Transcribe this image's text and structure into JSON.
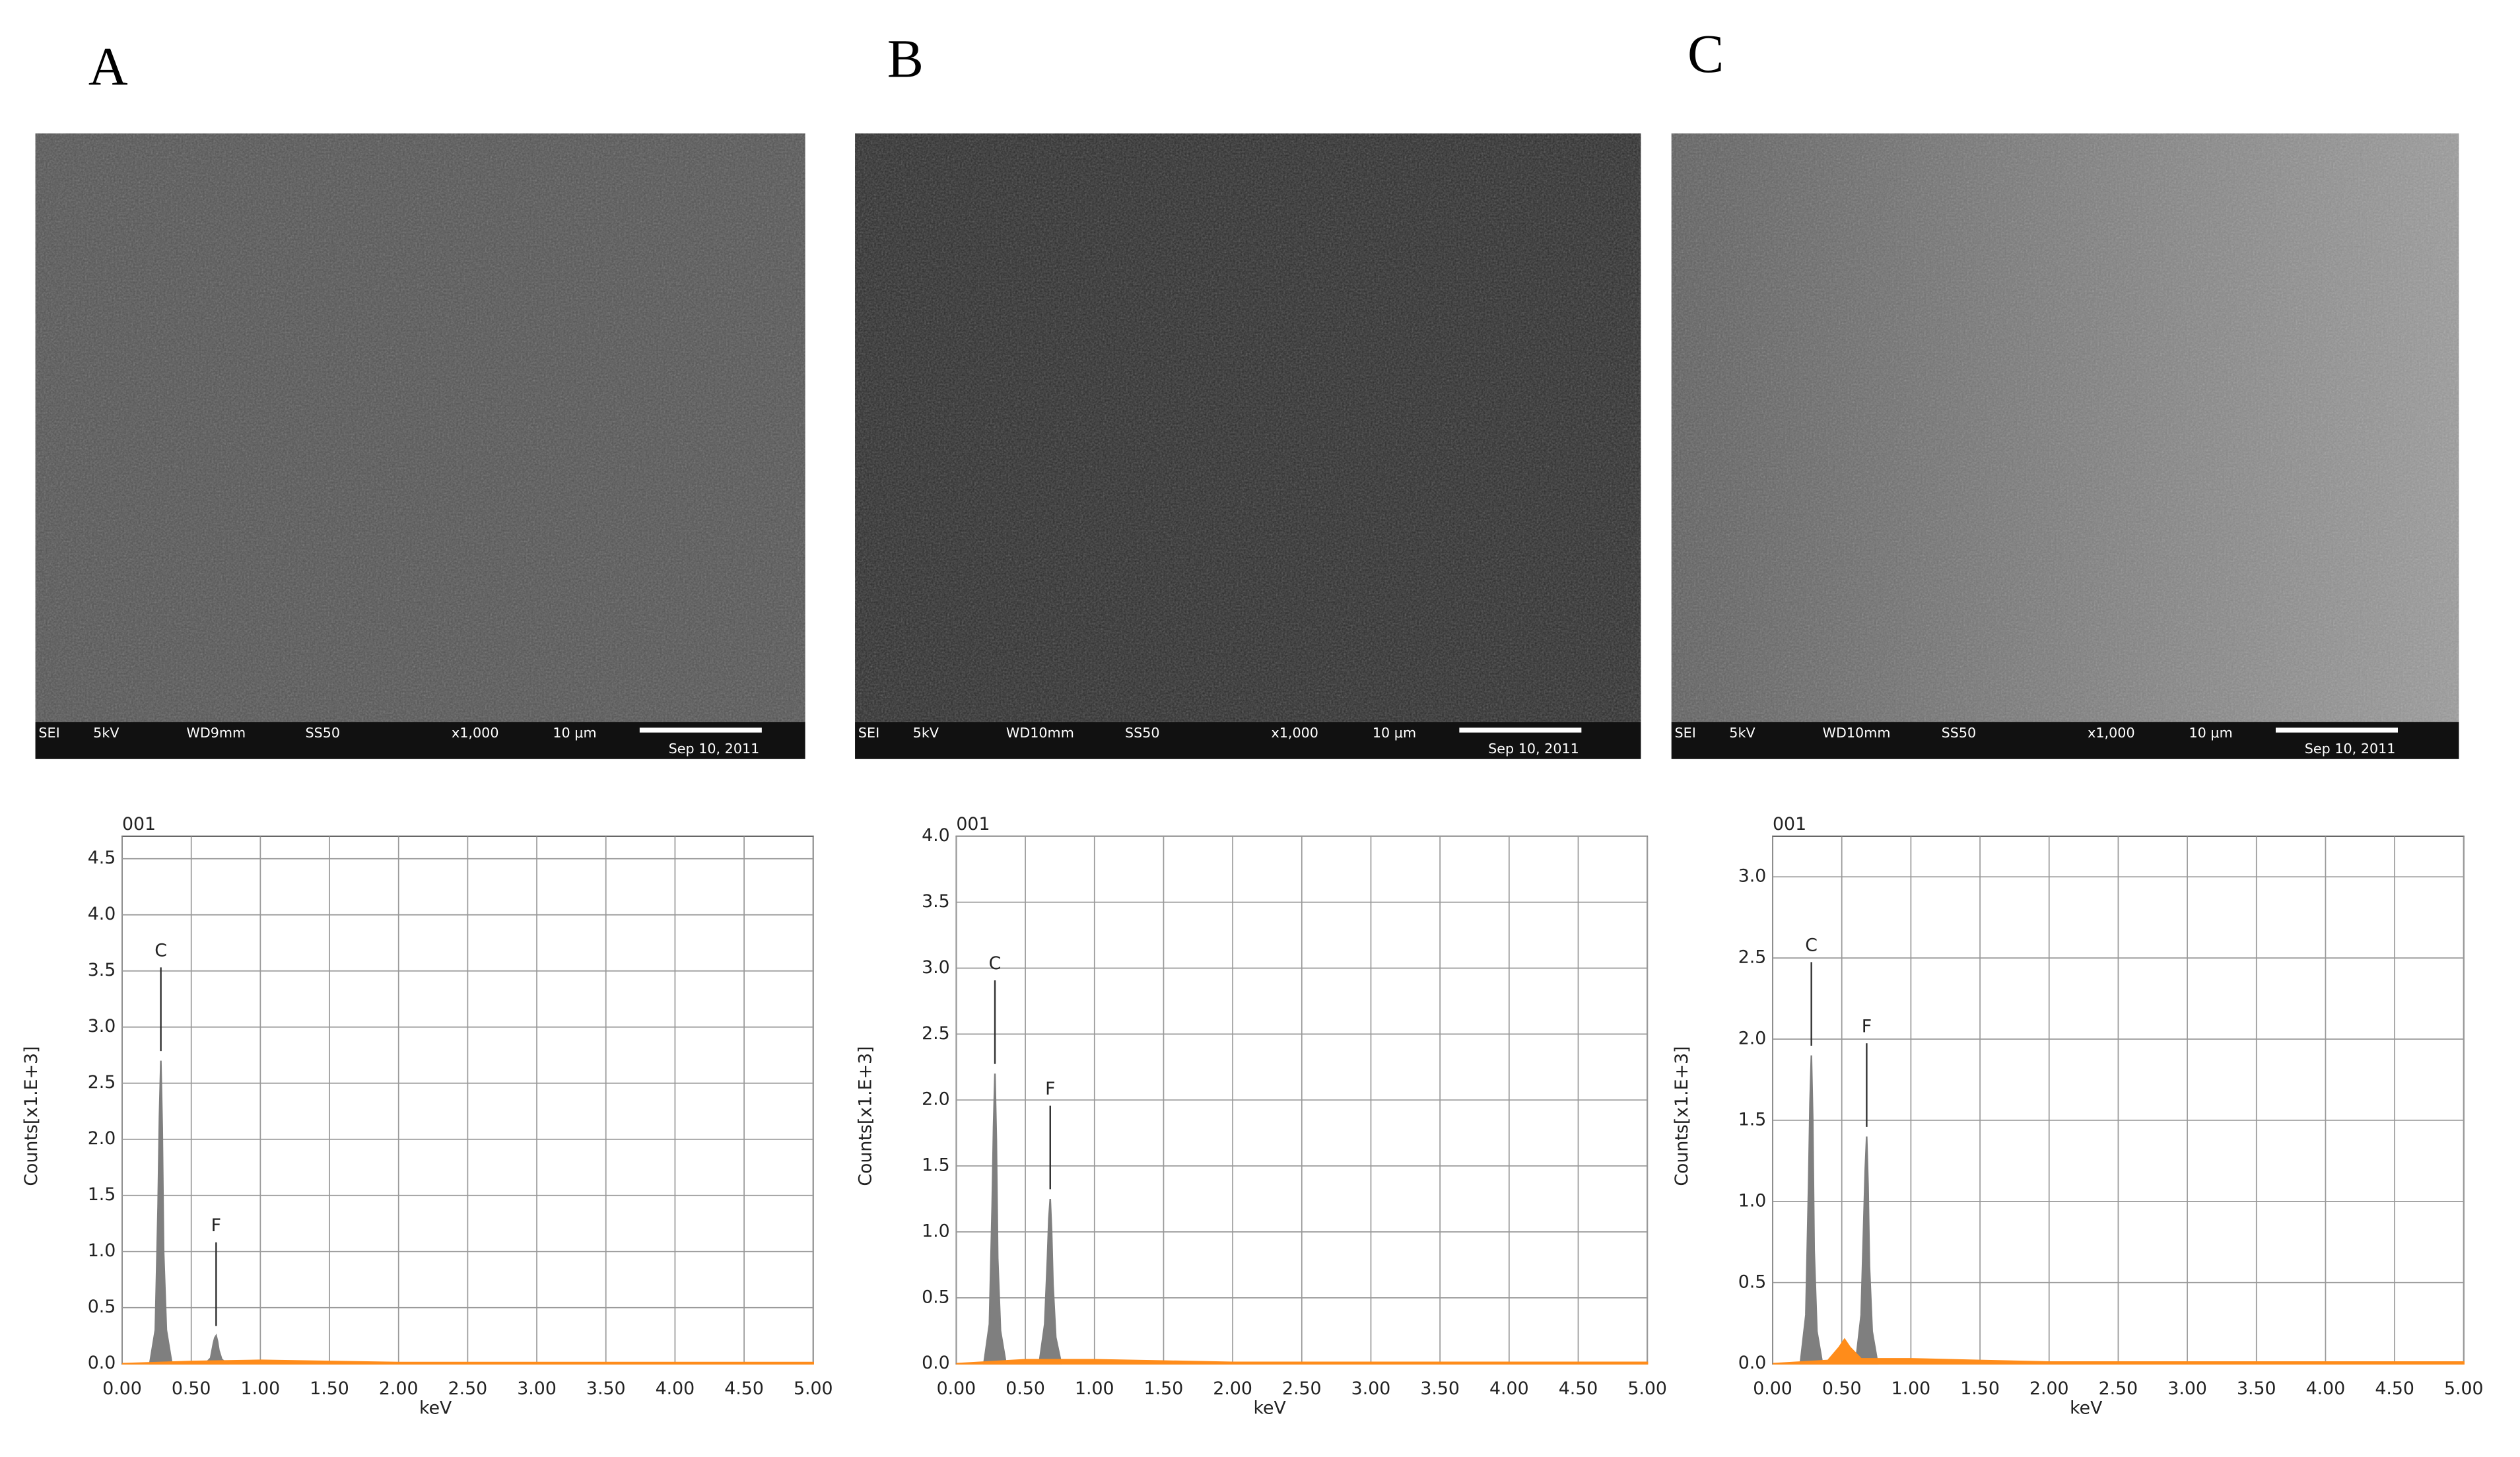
{
  "images": [
    {
      "label": "A",
      "info": [
        "SEI",
        "5kV",
        "WD9mm",
        "SS50",
        "x1,000",
        "10 μm",
        "Sep 10, 2011"
      ]
    },
    {
      "label": "B",
      "info": [
        "SEI",
        "5kV",
        "WD10mm",
        "SS50",
        "x1,000",
        "10 μm",
        "Sep 10, 2011"
      ]
    },
    {
      "label": "C",
      "info": [
        "SEI",
        "5kV",
        "WD10mm",
        "SS50",
        "x1,000",
        "10 μm",
        "Sep 10, 2011"
      ]
    }
  ],
  "chart_data": [
    {
      "type": "area",
      "title": "001",
      "xlabel": "keV",
      "ylabel": "Counts[x1.E+3]",
      "xlim": [
        0,
        5
      ],
      "ylim": [
        0,
        4.7
      ],
      "xticks": [
        {
          "value": 0,
          "label": "0.00"
        },
        {
          "value": 0.5,
          "label": "0.50"
        },
        {
          "value": 1,
          "label": "1.00"
        },
        {
          "value": 1.5,
          "label": "1.50"
        },
        {
          "value": 2,
          "label": "2.00"
        },
        {
          "value": 2.5,
          "label": "2.50"
        },
        {
          "value": 3,
          "label": "3.00"
        },
        {
          "value": 3.5,
          "label": "3.50"
        },
        {
          "value": 4,
          "label": "4.00"
        },
        {
          "value": 4.5,
          "label": "4.50"
        },
        {
          "value": 5,
          "label": "5.00"
        }
      ],
      "yticks": [
        {
          "value": 0,
          "label": "0.0"
        },
        {
          "value": 0.5,
          "label": "0.5"
        },
        {
          "value": 1,
          "label": "1.0"
        },
        {
          "value": 1.5,
          "label": "1.5"
        },
        {
          "value": 2,
          "label": "2.0"
        },
        {
          "value": 2.5,
          "label": "2.5"
        },
        {
          "value": 3,
          "label": "3.0"
        },
        {
          "value": 3.5,
          "label": "3.5"
        },
        {
          "value": 4,
          "label": "4.0"
        },
        {
          "value": 4.5,
          "label": "4.5"
        }
      ],
      "grid": true,
      "series": [
        {
          "color": "#7f7f7f",
          "x": [
            0.2,
            0.24,
            0.26,
            0.27,
            0.28,
            0.29,
            0.3,
            0.32,
            0.36,
            0.6,
            0.64,
            0.66,
            0.67,
            0.68,
            0.69,
            0.7,
            0.72,
            0.76
          ],
          "values": [
            0,
            0.3,
            1.4,
            2.2,
            2.7,
            2.1,
            1.0,
            0.3,
            0,
            0,
            0.05,
            0.18,
            0.23,
            0.25,
            0.2,
            0.12,
            0.04,
            0
          ]
        },
        {
          "color": "#ff8c1a",
          "x": [
            0,
            0.5,
            1,
            1.5,
            2,
            2.5,
            3,
            3.5,
            4,
            4.5,
            5
          ],
          "values": [
            0,
            0.02,
            0.03,
            0.02,
            0.01,
            0.01,
            0.01,
            0.01,
            0.01,
            0.01,
            0.01
          ]
        }
      ],
      "peak_labels": [
        {
          "text": "C",
          "x": 0.28
        },
        {
          "text": "F",
          "x": 0.68
        }
      ]
    },
    {
      "type": "area",
      "title": "001",
      "xlabel": "keV",
      "ylabel": "Counts[x1.E+3]",
      "xlim": [
        0,
        5
      ],
      "ylim": [
        0,
        4
      ],
      "xticks": [
        {
          "value": 0,
          "label": "0.00"
        },
        {
          "value": 0.5,
          "label": "0.50"
        },
        {
          "value": 1,
          "label": "1.00"
        },
        {
          "value": 1.5,
          "label": "1.50"
        },
        {
          "value": 2,
          "label": "2.00"
        },
        {
          "value": 2.5,
          "label": "2.50"
        },
        {
          "value": 3,
          "label": "3.00"
        },
        {
          "value": 3.5,
          "label": "3.50"
        },
        {
          "value": 4,
          "label": "4.00"
        },
        {
          "value": 4.5,
          "label": "4.50"
        },
        {
          "value": 5,
          "label": "5.00"
        }
      ],
      "yticks": [
        {
          "value": 0,
          "label": "0.0"
        },
        {
          "value": 0.5,
          "label": "0.5"
        },
        {
          "value": 1,
          "label": "1.0"
        },
        {
          "value": 1.5,
          "label": "1.5"
        },
        {
          "value": 2,
          "label": "2.0"
        },
        {
          "value": 2.5,
          "label": "2.5"
        },
        {
          "value": 3,
          "label": "3.0"
        },
        {
          "value": 3.5,
          "label": "3.5"
        },
        {
          "value": 4,
          "label": "4.0"
        }
      ],
      "grid": true,
      "series": [
        {
          "color": "#7f7f7f",
          "x": [
            0.2,
            0.24,
            0.26,
            0.27,
            0.28,
            0.29,
            0.3,
            0.32,
            0.36,
            0.6,
            0.64,
            0.66,
            0.67,
            0.68,
            0.69,
            0.7,
            0.72,
            0.76
          ],
          "values": [
            0,
            0.3,
            1.2,
            1.8,
            2.2,
            1.7,
            0.8,
            0.25,
            0,
            0,
            0.3,
            0.8,
            1.1,
            1.25,
            1.0,
            0.6,
            0.2,
            0
          ]
        },
        {
          "color": "#ff8c1a",
          "x": [
            0,
            0.5,
            1,
            1.5,
            2,
            2.5,
            3,
            3.5,
            4,
            4.5,
            5
          ],
          "values": [
            0,
            0.03,
            0.03,
            0.02,
            0.01,
            0.01,
            0.01,
            0.01,
            0.01,
            0.01,
            0.01
          ]
        }
      ],
      "peak_labels": [
        {
          "text": "C",
          "x": 0.28
        },
        {
          "text": "F",
          "x": 0.68
        }
      ]
    },
    {
      "type": "area",
      "title": "001",
      "xlabel": "keV",
      "ylabel": "Counts[x1.E+3]",
      "xlim": [
        0,
        5
      ],
      "ylim": [
        0,
        3.25
      ],
      "xticks": [
        {
          "value": 0,
          "label": "0.00"
        },
        {
          "value": 0.5,
          "label": "0.50"
        },
        {
          "value": 1,
          "label": "1.00"
        },
        {
          "value": 1.5,
          "label": "1.50"
        },
        {
          "value": 2,
          "label": "2.00"
        },
        {
          "value": 2.5,
          "label": "2.50"
        },
        {
          "value": 3,
          "label": "3.00"
        },
        {
          "value": 3.5,
          "label": "3.50"
        },
        {
          "value": 4,
          "label": "4.00"
        },
        {
          "value": 4.5,
          "label": "4.50"
        },
        {
          "value": 5,
          "label": "5.00"
        }
      ],
      "yticks": [
        {
          "value": 0,
          "label": "0.0"
        },
        {
          "value": 0.5,
          "label": "0.5"
        },
        {
          "value": 1,
          "label": "1.0"
        },
        {
          "value": 1.5,
          "label": "1.5"
        },
        {
          "value": 2,
          "label": "2.0"
        },
        {
          "value": 2.5,
          "label": "2.5"
        },
        {
          "value": 3,
          "label": "3.0"
        }
      ],
      "grid": true,
      "series": [
        {
          "color": "#7f7f7f",
          "x": [
            0.2,
            0.24,
            0.26,
            0.27,
            0.28,
            0.29,
            0.3,
            0.32,
            0.36,
            0.6,
            0.64,
            0.66,
            0.67,
            0.68,
            0.69,
            0.7,
            0.72,
            0.76
          ],
          "values": [
            0,
            0.3,
            1.1,
            1.6,
            1.9,
            1.5,
            0.7,
            0.2,
            0,
            0,
            0.3,
            0.9,
            1.2,
            1.4,
            1.1,
            0.6,
            0.2,
            0
          ]
        },
        {
          "color": "#ff8c1a",
          "x": [
            0,
            0.4,
            0.48,
            0.52,
            0.56,
            0.64,
            1,
            1.5,
            2,
            2.5,
            3,
            3.5,
            4,
            4.5,
            5
          ],
          "values": [
            0,
            0.02,
            0.1,
            0.15,
            0.1,
            0.03,
            0.03,
            0.02,
            0.01,
            0.01,
            0.01,
            0.01,
            0.01,
            0.01,
            0.01
          ]
        }
      ],
      "peak_labels": [
        {
          "text": "C",
          "x": 0.28
        },
        {
          "text": "F",
          "x": 0.68
        }
      ]
    }
  ]
}
